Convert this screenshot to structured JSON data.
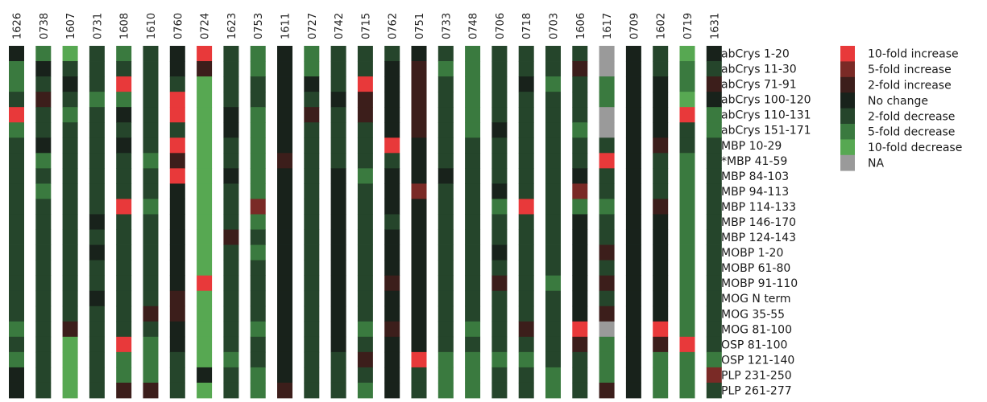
{
  "chart_data": {
    "type": "heatmap",
    "title": "",
    "columns": [
      "1626",
      "0738",
      "1607",
      "0731",
      "1608",
      "1610",
      "0760",
      "0724",
      "1623",
      "0753",
      "1611",
      "0727",
      "0742",
      "0715",
      "0762",
      "0751",
      "0733",
      "0748",
      "0706",
      "0718",
      "0703",
      "1606",
      "1617",
      "0709",
      "1602",
      "0719",
      "1631"
    ],
    "rows": [
      "abCrys 1-20",
      "abCrys 11-30",
      "abCrys 71-91",
      "abCrys 100-120",
      "abCrys 110-131",
      "abCrys 151-171",
      "MBP 10-29",
      "*MBP 41-59",
      "MBP 84-103",
      "MBP 94-113",
      "MBP 114-133",
      "MBP 146-170",
      "MBP 124-143",
      "MOBP 1-20",
      "MOBP 61-80",
      "MOBP 91-110",
      "MOG N term",
      "MOG 35-55",
      "MOG 81-100",
      "OSP 81-100",
      "OSP 121-140",
      "PLP 231-250",
      "PLP 261-277"
    ],
    "legend": [
      {
        "code": 3,
        "label": "10-fold increase",
        "color": "#e8393a"
      },
      {
        "code": 2,
        "label": "5-fold increase",
        "color": "#7a2a26"
      },
      {
        "code": 1,
        "label": "2-fold increase",
        "color": "#3c1e1b"
      },
      {
        "code": 0,
        "label": "No change",
        "color": "#18221b"
      },
      {
        "code": -1,
        "label": "2-fold decrease",
        "color": "#25452b"
      },
      {
        "code": -2,
        "label": "5-fold decrease",
        "color": "#3a7a3f"
      },
      {
        "code": -3,
        "label": "10-fold decrease",
        "color": "#57a852"
      },
      {
        "code": "NA",
        "label": "NA",
        "color": "#9a9a9a"
      }
    ],
    "legend_position": "right",
    "values": [
      [
        0,
        -2,
        -3,
        -1,
        -2,
        -1,
        0,
        3,
        -1,
        -2,
        0,
        -2,
        -1,
        -1,
        -1,
        0,
        -1,
        -2,
        -1,
        -1,
        -1,
        -1,
        "NA",
        0,
        -1,
        -3,
        0
      ],
      [
        -2,
        0,
        -1,
        -1,
        -1,
        -1,
        0,
        1,
        -1,
        -2,
        0,
        -2,
        -1,
        -1,
        0,
        1,
        -2,
        -2,
        -1,
        -1,
        -1,
        1,
        "NA",
        0,
        -1,
        -2,
        -1
      ],
      [
        -2,
        -1,
        0,
        -1,
        3,
        -1,
        -1,
        -3,
        -1,
        -1,
        0,
        0,
        -1,
        3,
        0,
        1,
        -1,
        -2,
        -1,
        0,
        -2,
        -1,
        -2,
        0,
        0,
        -2,
        1
      ],
      [
        -1,
        1,
        -1,
        -2,
        -2,
        -1,
        3,
        -3,
        -1,
        -1,
        0,
        -1,
        0,
        1,
        0,
        1,
        -1,
        -2,
        -1,
        -1,
        -1,
        -1,
        -2,
        0,
        0,
        -3,
        0
      ],
      [
        3,
        -1,
        -2,
        -1,
        0,
        -1,
        3,
        -3,
        0,
        -2,
        0,
        1,
        -1,
        1,
        0,
        1,
        -1,
        -2,
        -1,
        -1,
        -1,
        -1,
        "NA",
        0,
        0,
        3,
        -2
      ],
      [
        -2,
        -1,
        -1,
        -1,
        -1,
        -1,
        -1,
        -3,
        0,
        -2,
        0,
        -1,
        -1,
        -1,
        0,
        1,
        -1,
        -2,
        0,
        -1,
        -1,
        -2,
        "NA",
        0,
        0,
        -1,
        -2
      ],
      [
        -1,
        0,
        -1,
        -1,
        0,
        -1,
        3,
        -3,
        -1,
        -2,
        0,
        -1,
        -1,
        -1,
        3,
        0,
        -1,
        -1,
        -1,
        -1,
        -1,
        -1,
        -1,
        0,
        1,
        -1,
        -1
      ],
      [
        -1,
        -2,
        -1,
        -1,
        -1,
        -2,
        1,
        -3,
        -1,
        -2,
        1,
        -1,
        -1,
        -1,
        -1,
        0,
        -1,
        -1,
        -1,
        -1,
        -1,
        -1,
        3,
        0,
        -1,
        -2,
        -1
      ],
      [
        -1,
        -1,
        -1,
        -1,
        -1,
        -1,
        3,
        -3,
        0,
        -2,
        0,
        -1,
        0,
        -2,
        0,
        0,
        0,
        -1,
        -1,
        -1,
        -1,
        0,
        -1,
        0,
        -1,
        -2,
        -1
      ],
      [
        -1,
        -2,
        -1,
        -1,
        -1,
        -1,
        0,
        -3,
        -1,
        -2,
        0,
        -1,
        0,
        -1,
        0,
        2,
        -1,
        -1,
        0,
        -1,
        -1,
        2,
        -1,
        0,
        -1,
        -2,
        -1
      ],
      [
        -1,
        -1,
        -1,
        -1,
        3,
        -2,
        0,
        -3,
        -1,
        2,
        0,
        -1,
        0,
        -1,
        0,
        0,
        -1,
        -1,
        -2,
        3,
        -1,
        -2,
        -2,
        0,
        1,
        -2,
        -1
      ],
      [
        -1,
        -1,
        -1,
        0,
        -1,
        -1,
        0,
        -3,
        -1,
        -2,
        0,
        -1,
        0,
        -1,
        -1,
        0,
        -1,
        -1,
        -1,
        -1,
        -1,
        0,
        -1,
        0,
        0,
        -2,
        -1
      ],
      [
        -1,
        -1,
        -1,
        -1,
        -1,
        -1,
        0,
        -3,
        1,
        -1,
        0,
        -1,
        0,
        -1,
        0,
        0,
        -1,
        -1,
        -1,
        -1,
        -1,
        0,
        -1,
        0,
        0,
        -2,
        -1
      ],
      [
        -1,
        -1,
        -1,
        0,
        -1,
        -1,
        0,
        -3,
        -1,
        -2,
        0,
        -1,
        0,
        -1,
        0,
        0,
        -1,
        -1,
        0,
        -1,
        -1,
        0,
        1,
        0,
        0,
        -2,
        -1
      ],
      [
        -1,
        -1,
        -1,
        -1,
        -1,
        -1,
        0,
        -3,
        -1,
        -1,
        0,
        -1,
        0,
        -1,
        0,
        0,
        -1,
        -1,
        -1,
        -1,
        -1,
        0,
        -1,
        0,
        0,
        -2,
        -1
      ],
      [
        -1,
        -1,
        -1,
        -1,
        -1,
        -1,
        0,
        3,
        -1,
        -1,
        0,
        -1,
        0,
        -1,
        1,
        0,
        -1,
        -1,
        1,
        -1,
        -2,
        0,
        1,
        0,
        0,
        -2,
        -1
      ],
      [
        -1,
        -1,
        -1,
        0,
        -1,
        -1,
        1,
        -3,
        -1,
        -1,
        0,
        -1,
        0,
        -1,
        0,
        0,
        -1,
        -1,
        -1,
        -1,
        -1,
        0,
        -1,
        0,
        0,
        -2,
        -1
      ],
      [
        -1,
        -1,
        -1,
        -1,
        -1,
        1,
        1,
        -3,
        -1,
        -1,
        0,
        -1,
        0,
        -1,
        0,
        0,
        -1,
        -1,
        -1,
        -1,
        -1,
        0,
        1,
        0,
        0,
        -2,
        -1
      ],
      [
        -2,
        -1,
        1,
        -1,
        -1,
        -1,
        0,
        -3,
        -1,
        -2,
        0,
        -1,
        0,
        -2,
        1,
        0,
        -1,
        -2,
        -1,
        1,
        -1,
        3,
        "NA",
        0,
        3,
        -2,
        -1
      ],
      [
        -1,
        -1,
        -3,
        -1,
        3,
        -2,
        0,
        -3,
        -1,
        -1,
        0,
        -1,
        0,
        -1,
        0,
        0,
        -1,
        -1,
        -1,
        -1,
        -1,
        1,
        -2,
        0,
        1,
        3,
        -1
      ],
      [
        -2,
        -1,
        -3,
        -1,
        -2,
        -2,
        -1,
        -3,
        -2,
        -1,
        0,
        -1,
        -1,
        1,
        0,
        3,
        -2,
        -2,
        -2,
        -2,
        -1,
        -1,
        -2,
        0,
        -2,
        -2,
        -2
      ],
      [
        0,
        -1,
        -3,
        -1,
        -2,
        -2,
        -1,
        0,
        -1,
        -2,
        0,
        -1,
        -1,
        -1,
        0,
        -1,
        -2,
        -2,
        -1,
        -1,
        -2,
        -1,
        -2,
        0,
        -2,
        -2,
        2
      ],
      [
        0,
        -1,
        -3,
        -1,
        1,
        1,
        -1,
        -3,
        -1,
        -2,
        1,
        -1,
        -1,
        -2,
        0,
        -1,
        -2,
        -2,
        -1,
        -1,
        -2,
        -1,
        1,
        0,
        -2,
        -2,
        -1
      ]
    ]
  }
}
